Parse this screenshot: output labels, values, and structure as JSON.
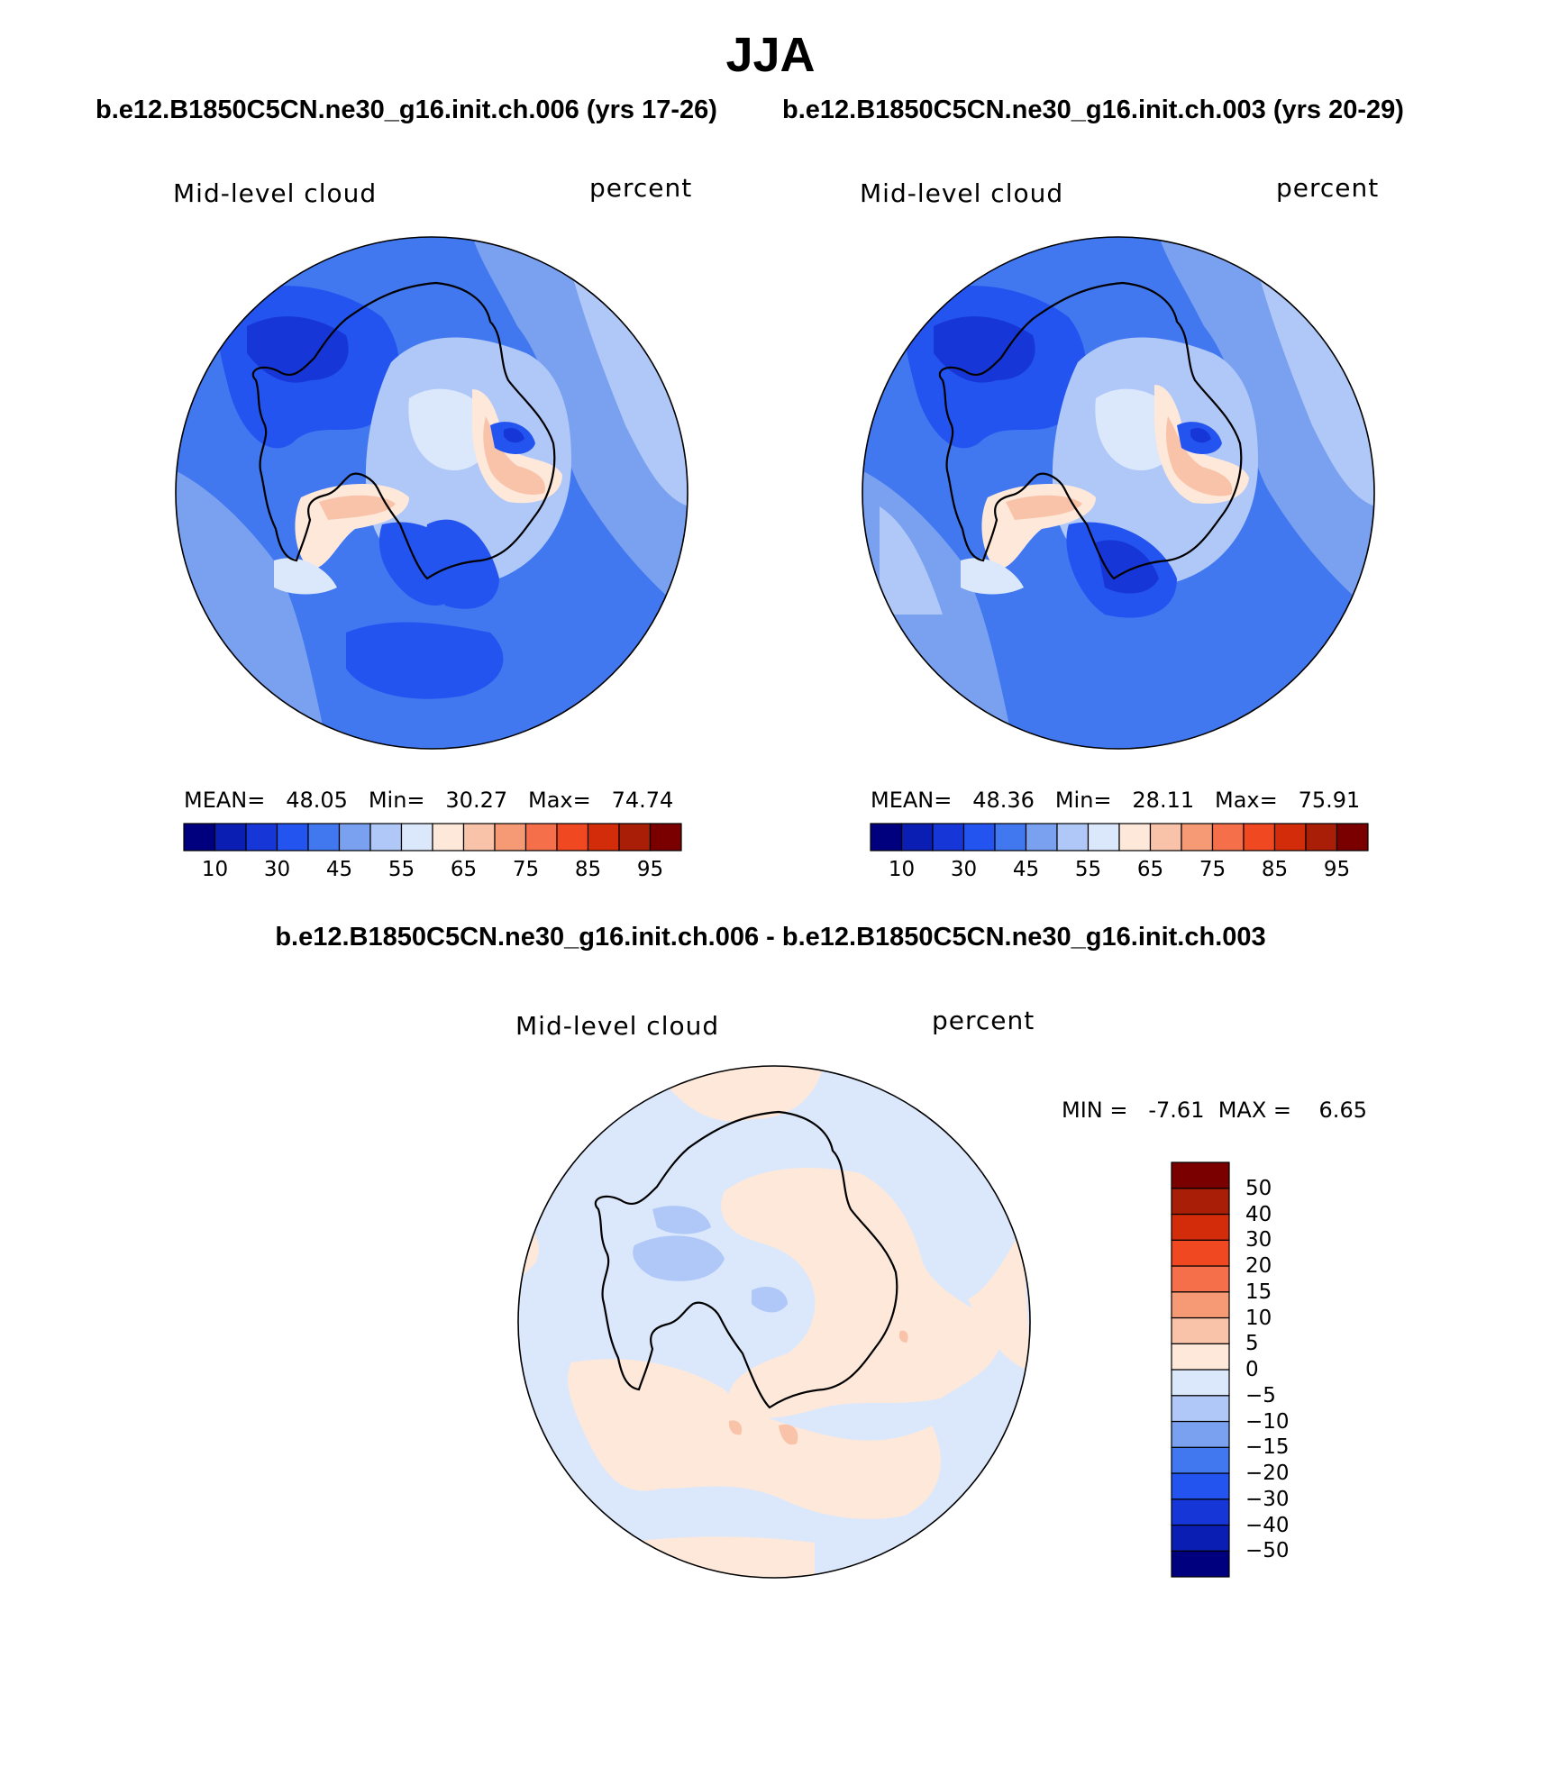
{
  "figure": {
    "season": "JJA",
    "diff_title": "b.e12.B1850C5CN.ne30_g16.init.ch.006 - b.e12.B1850C5CN.ne30_g16.init.ch.003"
  },
  "panels": [
    {
      "case": "b.e12.B1850C5CN.ne30_g16.init.ch.006 (yrs 17-26)",
      "variable": "Mid-level cloud",
      "units": "percent",
      "stats_text": "MEAN=   48.05   Min=   30.27   Max=   74.74"
    },
    {
      "case": "b.e12.B1850C5CN.ne30_g16.init.ch.003 (yrs 20-29)",
      "variable": "Mid-level cloud",
      "units": "percent",
      "stats_text": "MEAN=   48.36   Min=   28.11   Max=   75.91"
    },
    {
      "variable": "Mid-level cloud",
      "units": "percent",
      "stats_text": "MIN =   -7.61  MAX =    6.65"
    }
  ],
  "colorbar_abs": {
    "colors": [
      "#00007f",
      "#0a1eb4",
      "#1636d8",
      "#2454f0",
      "#4178f0",
      "#7aa0f0",
      "#b0c8f8",
      "#dbe8fc",
      "#fde8da",
      "#f9c3aa",
      "#f59a74",
      "#f5704a",
      "#f04820",
      "#d22c0a",
      "#a81e06",
      "#7a0000"
    ],
    "tick_labels": [
      "10",
      "30",
      "45",
      "55",
      "65",
      "75",
      "85",
      "95"
    ]
  },
  "colorbar_diff": {
    "colors": [
      "#00007f",
      "#0a1eb4",
      "#1636d8",
      "#2454f0",
      "#4178f0",
      "#7aa0f0",
      "#b0c8f8",
      "#dbe8fc",
      "#fde8da",
      "#f9c3aa",
      "#f59a74",
      "#f5704a",
      "#f04820",
      "#d22c0a",
      "#a81e06",
      "#7a0000"
    ],
    "tick_labels": [
      "50",
      "40",
      "30",
      "20",
      "15",
      "10",
      "5",
      "0",
      "−5",
      "−10",
      "−15",
      "−20",
      "−30",
      "−40",
      "−50"
    ]
  },
  "chart_data": [
    {
      "type": "heatmap",
      "title": "Mid-level cloud",
      "projection": "south-polar stereographic",
      "units": "percent",
      "mean": 48.05,
      "min": 30.27,
      "max": 74.74,
      "contour_levels": [
        5,
        10,
        20,
        30,
        40,
        45,
        50,
        55,
        60,
        65,
        70,
        75,
        80,
        85,
        90,
        95
      ]
    },
    {
      "type": "heatmap",
      "title": "Mid-level cloud",
      "projection": "south-polar stereographic",
      "units": "percent",
      "mean": 48.36,
      "min": 28.11,
      "max": 75.91,
      "contour_levels": [
        5,
        10,
        20,
        30,
        40,
        45,
        50,
        55,
        60,
        65,
        70,
        75,
        80,
        85,
        90,
        95
      ]
    },
    {
      "type": "heatmap",
      "title": "Mid-level cloud (difference)",
      "projection": "south-polar stereographic",
      "units": "percent",
      "min": -7.61,
      "max": 6.65,
      "contour_levels": [
        -50,
        -40,
        -30,
        -20,
        -15,
        -10,
        -5,
        0,
        5,
        10,
        15,
        20,
        30,
        40,
        50
      ]
    }
  ]
}
